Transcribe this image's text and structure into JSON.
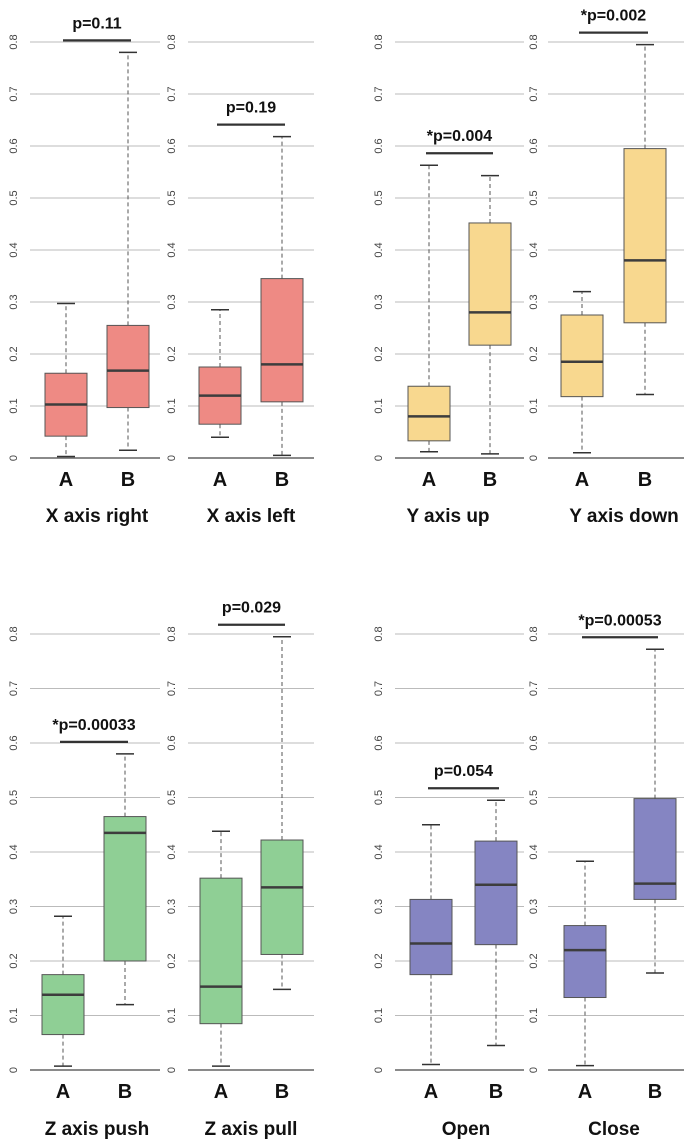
{
  "colors": {
    "red": "#ee8a84",
    "yellow": "#f8d88f",
    "green": "#8fcf95",
    "purple": "#8585c2",
    "median": "#3d3d3d",
    "grid": "#bbbbbb"
  },
  "chart_data": [
    {
      "type": "box",
      "title": "X axis right",
      "p_label": "p=0.11",
      "ylim": [
        0,
        0.8
      ],
      "yticks": [
        "0",
        "0.1",
        "0.2",
        "0.3",
        "0.4",
        "0.5",
        "0.6",
        "0.7",
        "0.8"
      ],
      "color": "red",
      "categories": [
        "A",
        "B"
      ],
      "boxes": [
        {
          "min": 0.003,
          "q1": 0.042,
          "median": 0.103,
          "q3": 0.163,
          "max": 0.297
        },
        {
          "min": 0.015,
          "q1": 0.097,
          "median": 0.168,
          "q3": 0.255,
          "max": 0.78
        }
      ]
    },
    {
      "type": "box",
      "title": "X axis left",
      "p_label": "p=0.19",
      "ylim": [
        0,
        0.8
      ],
      "yticks": [
        "0",
        "0.1",
        "0.2",
        "0.3",
        "0.4",
        "0.5",
        "0.6",
        "0.7",
        "0.8"
      ],
      "color": "red",
      "categories": [
        "A",
        "B"
      ],
      "boxes": [
        {
          "min": 0.04,
          "q1": 0.065,
          "median": 0.12,
          "q3": 0.175,
          "max": 0.285
        },
        {
          "min": 0.005,
          "q1": 0.108,
          "median": 0.18,
          "q3": 0.345,
          "max": 0.618
        }
      ]
    },
    {
      "type": "box",
      "title": "Y axis up",
      "p_label": "*p=0.004",
      "ylim": [
        0,
        0.8
      ],
      "yticks": [
        "0",
        "0.1",
        "0.2",
        "0.3",
        "0.4",
        "0.5",
        "0.6",
        "0.7",
        "0.8"
      ],
      "color": "yellow",
      "categories": [
        "A",
        "B"
      ],
      "boxes": [
        {
          "min": 0.012,
          "q1": 0.033,
          "median": 0.08,
          "q3": 0.138,
          "max": 0.563
        },
        {
          "min": 0.008,
          "q1": 0.217,
          "median": 0.28,
          "q3": 0.452,
          "max": 0.543
        }
      ]
    },
    {
      "type": "box",
      "title": "Y axis down",
      "p_label": "*p=0.002",
      "ylim": [
        0,
        0.8
      ],
      "yticks": [
        "0",
        "0.1",
        "0.2",
        "0.3",
        "0.4",
        "0.5",
        "0.6",
        "0.7",
        "0.8"
      ],
      "color": "yellow",
      "categories": [
        "A",
        "B"
      ],
      "boxes": [
        {
          "min": 0.01,
          "q1": 0.118,
          "median": 0.185,
          "q3": 0.275,
          "max": 0.32
        },
        {
          "min": 0.122,
          "q1": 0.26,
          "median": 0.38,
          "q3": 0.595,
          "max": 0.795
        }
      ]
    },
    {
      "type": "box",
      "title": "Z axis push",
      "p_label": "*p=0.00033",
      "ylim": [
        0,
        0.8
      ],
      "yticks": [
        "0",
        "0.1",
        "0.2",
        "0.3",
        "0.4",
        "0.5",
        "0.6",
        "0.7",
        "0.8"
      ],
      "color": "green",
      "categories": [
        "A",
        "B"
      ],
      "boxes": [
        {
          "min": 0.007,
          "q1": 0.065,
          "median": 0.138,
          "q3": 0.175,
          "max": 0.282
        },
        {
          "min": 0.12,
          "q1": 0.2,
          "median": 0.435,
          "q3": 0.465,
          "max": 0.58
        }
      ]
    },
    {
      "type": "box",
      "title": "Z axis pull",
      "p_label": "p=0.029",
      "ylim": [
        0,
        0.8
      ],
      "yticks": [
        "0",
        "0.1",
        "0.2",
        "0.3",
        "0.4",
        "0.5",
        "0.6",
        "0.7",
        "0.8"
      ],
      "color": "green",
      "categories": [
        "A",
        "B"
      ],
      "boxes": [
        {
          "min": 0.007,
          "q1": 0.085,
          "median": 0.153,
          "q3": 0.352,
          "max": 0.438
        },
        {
          "min": 0.148,
          "q1": 0.212,
          "median": 0.335,
          "q3": 0.422,
          "max": 0.795
        }
      ]
    },
    {
      "type": "box",
      "title": "Open",
      "p_label": "p=0.054",
      "ylim": [
        0,
        0.8
      ],
      "yticks": [
        "0",
        "0.1",
        "0.2",
        "0.3",
        "0.4",
        "0.5",
        "0.6",
        "0.7",
        "0.8"
      ],
      "color": "purple",
      "categories": [
        "A",
        "B"
      ],
      "boxes": [
        {
          "min": 0.01,
          "q1": 0.175,
          "median": 0.232,
          "q3": 0.313,
          "max": 0.45
        },
        {
          "min": 0.045,
          "q1": 0.23,
          "median": 0.34,
          "q3": 0.42,
          "max": 0.495
        }
      ]
    },
    {
      "type": "box",
      "title": "Close",
      "p_label": "*p=0.00053",
      "ylim": [
        0,
        0.8
      ],
      "yticks": [
        "0",
        "0.1",
        "0.2",
        "0.3",
        "0.4",
        "0.5",
        "0.6",
        "0.7",
        "0.8"
      ],
      "color": "purple",
      "categories": [
        "A",
        "B"
      ],
      "boxes": [
        {
          "min": 0.008,
          "q1": 0.133,
          "median": 0.22,
          "q3": 0.265,
          "max": 0.383
        },
        {
          "min": 0.178,
          "q1": 0.313,
          "median": 0.342,
          "q3": 0.498,
          "max": 0.772
        }
      ]
    }
  ]
}
